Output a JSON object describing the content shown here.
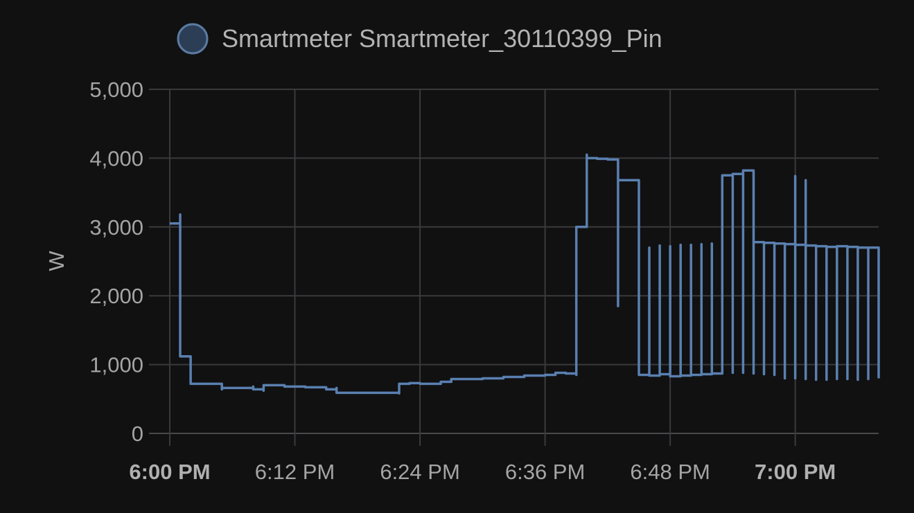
{
  "chart_data": {
    "type": "line",
    "title": "",
    "xlabel": "",
    "ylabel": "W",
    "ylim": [
      0,
      5000
    ],
    "xlim": [
      "6:00 PM",
      "7:08 PM"
    ],
    "y_ticks": [
      "0",
      "1,000",
      "2,000",
      "3,000",
      "4,000",
      "5,000"
    ],
    "x_ticks": [
      {
        "label": "6:00 PM",
        "bold": true
      },
      {
        "label": "6:12 PM",
        "bold": false
      },
      {
        "label": "6:24 PM",
        "bold": false
      },
      {
        "label": "6:36 PM",
        "bold": false
      },
      {
        "label": "6:48 PM",
        "bold": false
      },
      {
        "label": "7:00 PM",
        "bold": true
      }
    ],
    "grid": true,
    "legend": {
      "position": "top",
      "marker_color": "#2c3e55"
    },
    "series": [
      {
        "name": "Smartmeter Smartmeter_30110399_Pin",
        "color": "#5a80b0",
        "x": [
          "6:00 PM",
          "6:01 PM",
          "6:01 PM",
          "6:01 PM",
          "6:01 PM",
          "6:02 PM",
          "6:02 PM",
          "6:03 PM",
          "6:05 PM",
          "6:05 PM",
          "6:08 PM",
          "6:08 PM",
          "6:09 PM",
          "6:09 PM",
          "6:11 PM",
          "6:11 PM",
          "6:13 PM",
          "6:15 PM",
          "6:16 PM",
          "6:16 PM",
          "6:18 PM",
          "6:20 PM",
          "6:22 PM",
          "6:22 PM",
          "6:23 PM",
          "6:24 PM",
          "6:26 PM",
          "6:27 PM",
          "6:28 PM",
          "6:30 PM",
          "6:32 PM",
          "6:34 PM",
          "6:36 PM",
          "6:37 PM",
          "6:38 PM",
          "6:39 PM",
          "6:39 PM",
          "6:40 PM",
          "6:40 PM",
          "6:41 PM",
          "6:42 PM",
          "6:43 PM",
          "6:43 PM",
          "6:43 PM",
          "6:44 PM",
          "6:45 PM",
          "6:45 PM",
          "6:46 PM",
          "6:46 PM",
          "6:47 PM",
          "6:47 PM",
          "6:48 PM",
          "6:48 PM",
          "6:49 PM",
          "6:49 PM",
          "6:50 PM",
          "6:50 PM",
          "6:51 PM",
          "6:51 PM",
          "6:52 PM",
          "6:52 PM",
          "6:53 PM",
          "6:53 PM",
          "6:54 PM",
          "6:54 PM",
          "6:54 PM",
          "6:55 PM",
          "6:55 PM",
          "6:55 PM",
          "6:56 PM",
          "6:56 PM",
          "6:57 PM",
          "6:57 PM",
          "6:58 PM",
          "6:58 PM",
          "6:59 PM",
          "6:59 PM",
          "7:00 PM",
          "7:00 PM",
          "7:00 PM",
          "7:01 PM",
          "7:01 PM",
          "7:01 PM",
          "7:02 PM",
          "7:02 PM",
          "7:03 PM",
          "7:03 PM",
          "7:04 PM",
          "7:04 PM",
          "7:05 PM",
          "7:05 PM",
          "7:06 PM",
          "7:06 PM",
          "7:07 PM",
          "7:07 PM",
          "7:08 PM"
        ],
        "values": [
          3050,
          3030,
          3180,
          1200,
          1120,
          1120,
          720,
          720,
          640,
          660,
          680,
          640,
          620,
          700,
          680,
          680,
          670,
          640,
          660,
          590,
          590,
          590,
          580,
          720,
          730,
          720,
          750,
          790,
          790,
          800,
          820,
          840,
          850,
          880,
          870,
          850,
          3000,
          4050,
          4000,
          3990,
          3980,
          3700,
          1850,
          3680,
          3680,
          2700,
          850,
          2700,
          840,
          2730,
          860,
          2720,
          830,
          2740,
          840,
          2740,
          850,
          2750,
          860,
          2760,
          870,
          2760,
          3750,
          880,
          2770,
          3770,
          880,
          2780,
          3820,
          870,
          2780,
          860,
          2770,
          850,
          2760,
          800,
          2750,
          3740,
          800,
          2740,
          3680,
          790,
          2730,
          780,
          2720,
          780,
          2710,
          790,
          2720,
          790,
          2710,
          780,
          2700,
          790,
          2700,
          800
        ]
      }
    ]
  }
}
